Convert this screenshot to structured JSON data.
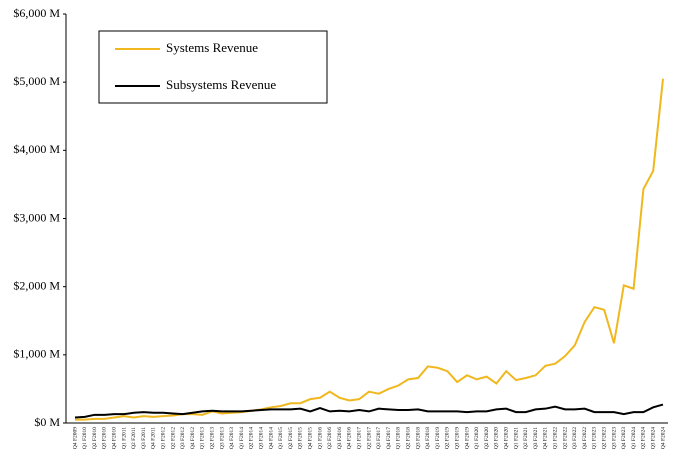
{
  "chart_data": {
    "type": "line",
    "categories": [
      "Q4 F2009",
      "Q1 F2010",
      "Q2 F2010",
      "Q3 F2010",
      "Q4 F2010",
      "Q1 F2011",
      "Q2 F2011",
      "Q3 F2011",
      "Q4 F2011",
      "Q1 F2012",
      "Q2 F2012",
      "Q3 F2012",
      "Q4 F2012",
      "Q1 F2013",
      "Q2 F2013",
      "Q3 F2013",
      "Q4 F2013",
      "Q1 F2014",
      "Q2 F2014",
      "Q3 F2014",
      "Q4 F2014",
      "Q1 F2015",
      "Q2 F2015",
      "Q3 F2015",
      "Q4 F2015",
      "Q1 F2016",
      "Q2 F2016",
      "Q3 F2016",
      "Q4 F2016",
      "Q1 F2017",
      "Q2 F2017",
      "Q3 F2017",
      "Q4 F2017",
      "Q1 F2018",
      "Q2 F2018",
      "Q3 F2018",
      "Q4 F2018",
      "Q1 F2019",
      "Q2 F2019",
      "Q3 F2019",
      "Q4 F2019",
      "Q1 F2020",
      "Q2 F2020",
      "Q3 F2020",
      "Q4 F2020",
      "Q1 F2021",
      "Q2 F2021",
      "Q3 F2021",
      "Q4 F2021",
      "Q1 F2022",
      "Q2 F2022",
      "Q3 F2022",
      "Q4 F2022",
      "Q1 F2023",
      "Q2 F2023",
      "Q3 F2023",
      "Q4 F2023",
      "Q1 F2024",
      "Q2 F2024",
      "Q3 F2024",
      "Q4 F2024"
    ],
    "series": [
      {
        "name": "Systems Revenue",
        "color": "#f0b81e",
        "values": [
          50,
          50,
          60,
          60,
          80,
          100,
          80,
          100,
          90,
          100,
          110,
          130,
          130,
          120,
          170,
          140,
          150,
          160,
          180,
          200,
          230,
          250,
          290,
          290,
          350,
          370,
          460,
          370,
          330,
          350,
          460,
          430,
          500,
          550,
          640,
          660,
          830,
          810,
          760,
          600,
          700,
          640,
          680,
          580,
          760,
          630,
          660,
          700,
          840,
          870,
          980,
          1140,
          1480,
          1700,
          1660,
          1170,
          2020,
          1970,
          3430,
          3700,
          5050
        ]
      },
      {
        "name": "Subsystems Revenue",
        "color": "#000000",
        "values": [
          80,
          90,
          120,
          120,
          130,
          130,
          150,
          160,
          150,
          150,
          140,
          130,
          150,
          170,
          180,
          170,
          170,
          170,
          180,
          190,
          200,
          200,
          200,
          210,
          170,
          220,
          170,
          180,
          170,
          190,
          170,
          210,
          200,
          190,
          190,
          200,
          170,
          170,
          170,
          170,
          160,
          170,
          170,
          200,
          210,
          160,
          160,
          200,
          210,
          240,
          200,
          200,
          210,
          160,
          160,
          160,
          130,
          160,
          160,
          230,
          270
        ]
      }
    ],
    "ylim": [
      0,
      6000
    ],
    "yticks": [
      {
        "value": 0,
        "label": "$0 M"
      },
      {
        "value": 1000,
        "label": "$1,000 M"
      },
      {
        "value": 2000,
        "label": "$2,000 M"
      },
      {
        "value": 3000,
        "label": "$3,000 M"
      },
      {
        "value": 4000,
        "label": "$4,000 M"
      },
      {
        "value": 5000,
        "label": "$5,000 M"
      },
      {
        "value": 6000,
        "label": "$6,000 M"
      }
    ]
  }
}
